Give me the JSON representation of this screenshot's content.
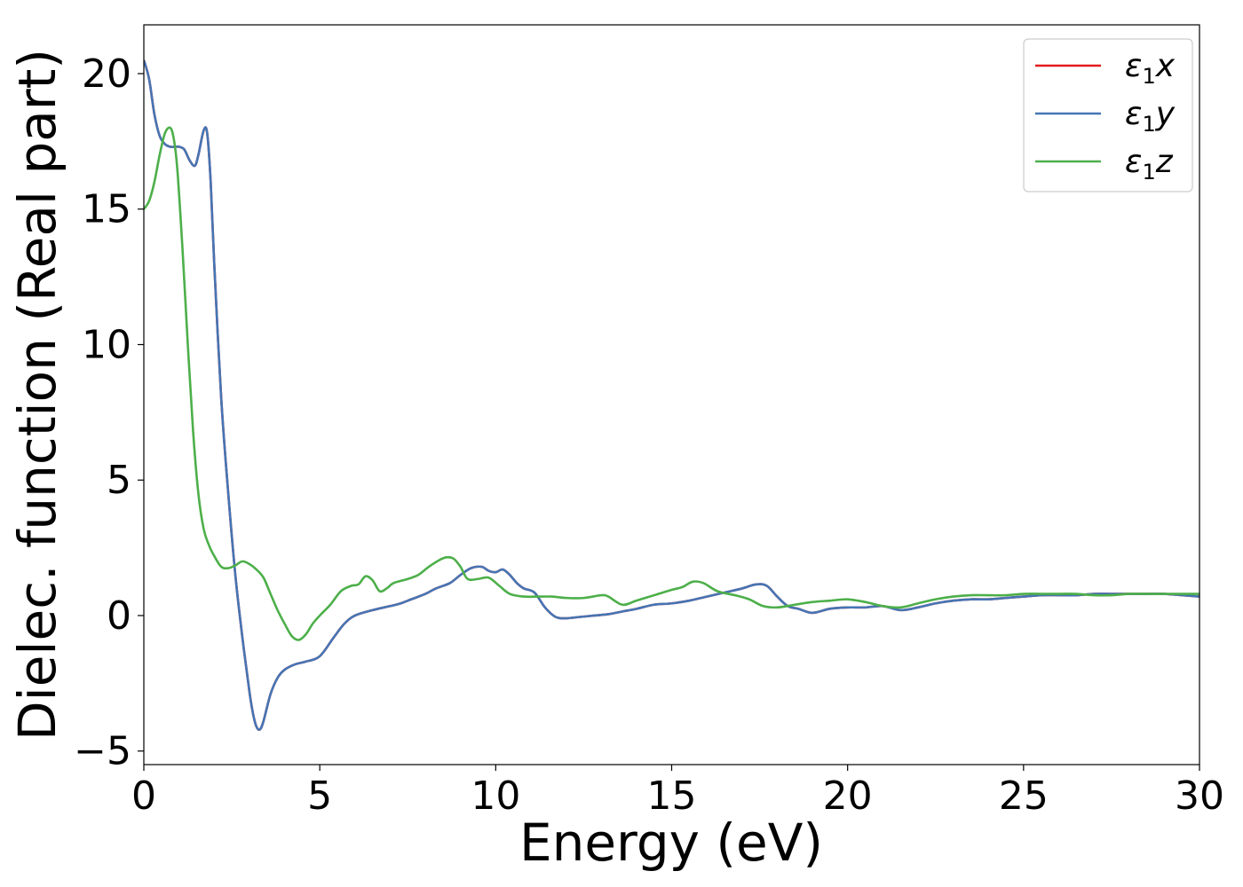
{
  "chart_data": {
    "type": "line",
    "title": "",
    "xlabel": "Energy (eV)",
    "ylabel": "Dielec. function (Real part)",
    "xlim": [
      0,
      30
    ],
    "ylim": [
      -5.5,
      21.8
    ],
    "xticks": [
      0,
      5,
      10,
      15,
      20,
      25,
      30
    ],
    "xtick_labels": [
      "0",
      "5",
      "10",
      "15",
      "20",
      "25",
      "30"
    ],
    "yticks": [
      -5,
      0,
      5,
      10,
      15,
      20
    ],
    "ytick_labels": [
      "−5",
      "0",
      "5",
      "10",
      "15",
      "20"
    ],
    "grid": false,
    "legend_position": "top-right",
    "series": [
      {
        "name": "ε₁x",
        "legend_base": "ε",
        "legend_sub": "1",
        "legend_var": "x",
        "color": "#e41a1c",
        "x": [
          0,
          0.15,
          0.3,
          0.45,
          0.6,
          0.75,
          0.9,
          1.0,
          1.15,
          1.3,
          1.45,
          1.55,
          1.7,
          1.8,
          1.9,
          2.0,
          2.2,
          2.4,
          2.6,
          2.8,
          3.0,
          3.1,
          3.2,
          3.3,
          3.4,
          3.6,
          3.8,
          4.0,
          4.3,
          4.6,
          5.0,
          5.4,
          5.7,
          6.0,
          6.5,
          7.0,
          7.3,
          7.6,
          8.0,
          8.3,
          8.7,
          9.0,
          9.3,
          9.6,
          9.8,
          10.0,
          10.2,
          10.4,
          10.6,
          10.8,
          11.1,
          11.4,
          11.7,
          12.0,
          12.4,
          12.8,
          13.2,
          13.6,
          14.0,
          14.5,
          15.0,
          15.5,
          16.0,
          16.5,
          17.0,
          17.4,
          17.7,
          18.0,
          18.3,
          18.6,
          19.0,
          19.5,
          20.0,
          20.5,
          21.0,
          21.5,
          22.0,
          22.5,
          23.0,
          23.5,
          24.0,
          24.5,
          25.0,
          25.5,
          26.0,
          26.5,
          27.0,
          27.5,
          28.0,
          28.5,
          29.0,
          29.5,
          30.0
        ],
        "y": [
          20.5,
          19.8,
          18.5,
          17.7,
          17.4,
          17.3,
          17.3,
          17.3,
          17.2,
          16.8,
          16.6,
          17.0,
          17.9,
          17.8,
          16.0,
          13.0,
          8.0,
          4.5,
          1.5,
          -0.8,
          -2.8,
          -3.6,
          -4.1,
          -4.2,
          -3.9,
          -2.9,
          -2.3,
          -2.0,
          -1.8,
          -1.7,
          -1.5,
          -0.8,
          -0.3,
          0.0,
          0.2,
          0.35,
          0.45,
          0.6,
          0.8,
          1.0,
          1.2,
          1.5,
          1.75,
          1.8,
          1.65,
          1.6,
          1.7,
          1.5,
          1.2,
          1.0,
          0.85,
          0.3,
          -0.05,
          -0.1,
          -0.05,
          0.0,
          0.05,
          0.15,
          0.25,
          0.4,
          0.45,
          0.55,
          0.7,
          0.85,
          1.0,
          1.15,
          1.1,
          0.7,
          0.35,
          0.25,
          0.1,
          0.25,
          0.3,
          0.3,
          0.35,
          0.2,
          0.3,
          0.45,
          0.55,
          0.6,
          0.6,
          0.65,
          0.7,
          0.75,
          0.75,
          0.75,
          0.8,
          0.8,
          0.8,
          0.8,
          0.8,
          0.75,
          0.7
        ]
      },
      {
        "name": "ε₁y",
        "legend_base": "ε",
        "legend_sub": "1",
        "legend_var": "y",
        "color": "#4575b4",
        "x": [
          0,
          0.15,
          0.3,
          0.45,
          0.6,
          0.75,
          0.9,
          1.0,
          1.15,
          1.3,
          1.45,
          1.55,
          1.7,
          1.8,
          1.9,
          2.0,
          2.2,
          2.4,
          2.6,
          2.8,
          3.0,
          3.1,
          3.2,
          3.3,
          3.4,
          3.6,
          3.8,
          4.0,
          4.3,
          4.6,
          5.0,
          5.4,
          5.7,
          6.0,
          6.5,
          7.0,
          7.3,
          7.6,
          8.0,
          8.3,
          8.7,
          9.0,
          9.3,
          9.6,
          9.8,
          10.0,
          10.2,
          10.4,
          10.6,
          10.8,
          11.1,
          11.4,
          11.7,
          12.0,
          12.4,
          12.8,
          13.2,
          13.6,
          14.0,
          14.5,
          15.0,
          15.5,
          16.0,
          16.5,
          17.0,
          17.4,
          17.7,
          18.0,
          18.3,
          18.6,
          19.0,
          19.5,
          20.0,
          20.5,
          21.0,
          21.5,
          22.0,
          22.5,
          23.0,
          23.5,
          24.0,
          24.5,
          25.0,
          25.5,
          26.0,
          26.5,
          27.0,
          27.5,
          28.0,
          28.5,
          29.0,
          29.5,
          30.0
        ],
        "y": [
          20.5,
          19.8,
          18.5,
          17.7,
          17.4,
          17.3,
          17.3,
          17.3,
          17.2,
          16.8,
          16.6,
          17.0,
          17.9,
          17.8,
          16.0,
          13.0,
          8.0,
          4.5,
          1.5,
          -0.8,
          -2.8,
          -3.6,
          -4.1,
          -4.2,
          -3.9,
          -2.9,
          -2.3,
          -2.0,
          -1.8,
          -1.7,
          -1.5,
          -0.8,
          -0.3,
          0.0,
          0.2,
          0.35,
          0.45,
          0.6,
          0.8,
          1.0,
          1.2,
          1.5,
          1.75,
          1.8,
          1.65,
          1.6,
          1.7,
          1.5,
          1.2,
          1.0,
          0.85,
          0.3,
          -0.05,
          -0.1,
          -0.05,
          0.0,
          0.05,
          0.15,
          0.25,
          0.4,
          0.45,
          0.55,
          0.7,
          0.85,
          1.0,
          1.15,
          1.1,
          0.7,
          0.35,
          0.25,
          0.1,
          0.25,
          0.3,
          0.3,
          0.35,
          0.2,
          0.3,
          0.45,
          0.55,
          0.6,
          0.6,
          0.65,
          0.7,
          0.75,
          0.75,
          0.75,
          0.8,
          0.8,
          0.8,
          0.8,
          0.8,
          0.75,
          0.7
        ]
      },
      {
        "name": "ε₁z",
        "legend_base": "ε",
        "legend_sub": "1",
        "legend_var": "z",
        "color": "#4daf4a",
        "x": [
          0,
          0.15,
          0.3,
          0.45,
          0.6,
          0.75,
          0.85,
          0.95,
          1.1,
          1.25,
          1.4,
          1.55,
          1.7,
          1.85,
          2.0,
          2.2,
          2.4,
          2.6,
          2.8,
          3.0,
          3.2,
          3.4,
          3.6,
          3.8,
          4.0,
          4.2,
          4.4,
          4.6,
          4.8,
          5.0,
          5.3,
          5.6,
          5.9,
          6.1,
          6.3,
          6.5,
          6.7,
          6.9,
          7.1,
          7.5,
          7.8,
          8.1,
          8.4,
          8.6,
          8.8,
          9.0,
          9.2,
          9.5,
          9.8,
          10.1,
          10.4,
          10.8,
          11.2,
          11.6,
          12.0,
          12.5,
          13.0,
          13.2,
          13.6,
          14.0,
          14.5,
          15.0,
          15.3,
          15.6,
          15.9,
          16.3,
          16.8,
          17.2,
          17.6,
          18.0,
          18.5,
          19.0,
          19.5,
          20.0,
          20.5,
          21.0,
          21.5,
          22.0,
          22.5,
          23.0,
          23.5,
          24.0,
          24.5,
          25.0,
          25.5,
          26.0,
          26.5,
          27.0,
          27.5,
          28.0,
          28.5,
          29.0,
          29.5,
          30.0
        ],
        "y": [
          15.0,
          15.3,
          16.0,
          17.0,
          17.8,
          18.0,
          17.6,
          16.5,
          13.5,
          10.0,
          6.8,
          4.5,
          3.2,
          2.6,
          2.2,
          1.8,
          1.75,
          1.85,
          2.0,
          1.9,
          1.7,
          1.4,
          0.8,
          0.2,
          -0.3,
          -0.75,
          -0.9,
          -0.7,
          -0.3,
          0.0,
          0.4,
          0.9,
          1.1,
          1.15,
          1.45,
          1.3,
          0.9,
          1.0,
          1.2,
          1.35,
          1.5,
          1.8,
          2.05,
          2.15,
          2.1,
          1.8,
          1.35,
          1.35,
          1.4,
          1.1,
          0.8,
          0.7,
          0.7,
          0.7,
          0.65,
          0.65,
          0.75,
          0.7,
          0.4,
          0.55,
          0.75,
          0.95,
          1.05,
          1.25,
          1.2,
          0.9,
          0.75,
          0.6,
          0.35,
          0.3,
          0.4,
          0.5,
          0.55,
          0.6,
          0.5,
          0.35,
          0.3,
          0.45,
          0.6,
          0.7,
          0.75,
          0.75,
          0.75,
          0.8,
          0.8,
          0.8,
          0.8,
          0.75,
          0.75,
          0.8,
          0.8,
          0.8,
          0.8,
          0.8
        ]
      }
    ]
  }
}
